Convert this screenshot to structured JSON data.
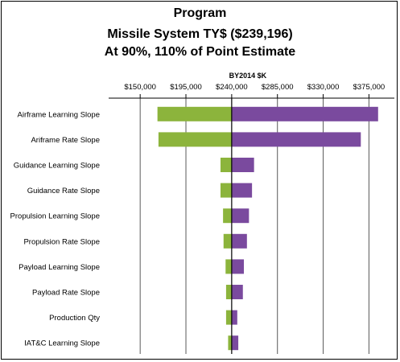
{
  "chart_data": {
    "type": "bar",
    "orientation": "horizontal",
    "chart_subtype": "tornado",
    "title_lines": [
      "Program",
      "Missile System TY$ ($239,196)",
      "At 90%, 110% of Point Estimate"
    ],
    "axis_title": "BY2014 $K",
    "axis_position": "top",
    "tick_values": [
      150000,
      195000,
      240000,
      285000,
      330000,
      375000
    ],
    "tick_labels": [
      "$150,000",
      "$195,000",
      "$240,000",
      "$285,000",
      "$330,000",
      "$375,000"
    ],
    "xlim": [
      119000,
      400000
    ],
    "baseline": 240000,
    "grid": true,
    "categories": [
      "Airframe Learning Slope",
      "Ariframe Rate Slope",
      "Guidance Learning Slope",
      "Guidance Rate Slope",
      "Propulsion Learning Slope",
      "Propulsion Rate Slope",
      "Payload Learning Slope",
      "Payload Rate Slope",
      "Production Qty",
      "IAT&C Learning Slope"
    ],
    "low_values": [
      167000,
      168000,
      229000,
      229000,
      231500,
      232000,
      234000,
      234500,
      234500,
      236500
    ],
    "high_values": [
      384000,
      367000,
      262000,
      260000,
      257000,
      255000,
      252000,
      251000,
      245500,
      246500
    ],
    "colors": {
      "low": "#8cb43c",
      "high": "#7a4a9e",
      "grid": "#595959",
      "baseline": "#000000"
    }
  }
}
